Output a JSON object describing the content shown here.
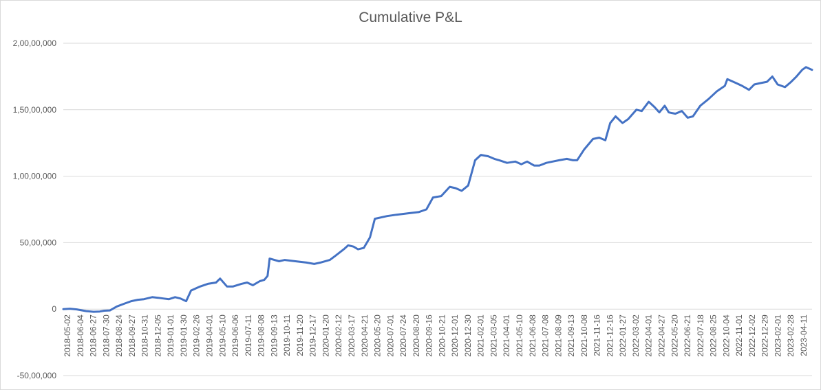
{
  "chart_data": {
    "type": "line",
    "title": "Cumulative P&L",
    "xlabel": "",
    "ylabel": "",
    "ylim": [
      -5000000,
      20000000
    ],
    "y_ticks": [
      {
        "value": 20000000,
        "label": "2,00,00,000"
      },
      {
        "value": 15000000,
        "label": "1,50,00,000"
      },
      {
        "value": 10000000,
        "label": "1,00,00,000"
      },
      {
        "value": 5000000,
        "label": "50,00,000"
      },
      {
        "value": 0,
        "label": "0"
      },
      {
        "value": -5000000,
        "label": "-50,00,000"
      }
    ],
    "grid": true,
    "legend": "none",
    "line_color": "#4472c4",
    "x_tick_labels": [
      "2018-05-02",
      "2018-06-04",
      "2018-06-27",
      "2018-07-30",
      "2018-08-24",
      "2018-09-27",
      "2018-10-31",
      "2018-12-05",
      "2019-01-01",
      "2019-01-30",
      "2019-02-26",
      "2019-04-01",
      "2019-05-10",
      "2019-06-06",
      "2019-07-11",
      "2019-08-08",
      "2019-09-13",
      "2019-10-11",
      "2019-11-20",
      "2019-12-17",
      "2020-01-20",
      "2020-02-12",
      "2020-03-17",
      "2020-04-21",
      "2020-05-20",
      "2020-07-01",
      "2020-07-24",
      "2020-08-20",
      "2020-09-16",
      "2020-10-21",
      "2020-12-01",
      "2020-12-30",
      "2021-02-01",
      "2021-03-05",
      "2021-04-01",
      "2021-05-10",
      "2021-06-08",
      "2021-07-08",
      "2021-08-09",
      "2021-09-13",
      "2021-10-08",
      "2021-11-16",
      "2021-12-16",
      "2022-01-27",
      "2022-03-02",
      "2022-04-01",
      "2022-04-27",
      "2022-05-20",
      "2022-06-21",
      "2022-07-18",
      "2022-08-25",
      "2022-10-04",
      "2022-11-01",
      "2022-12-02",
      "2022-12-29",
      "2023-02-01",
      "2023-02-28",
      "2023-04-11"
    ],
    "x_range": [
      "2018-05-02",
      "2023-05-05"
    ],
    "series": [
      {
        "points": [
          [
            "2018-05-02",
            0
          ],
          [
            "2018-05-18",
            30000
          ],
          [
            "2018-06-04",
            -20000
          ],
          [
            "2018-06-27",
            -150000
          ],
          [
            "2018-07-15",
            -200000
          ],
          [
            "2018-07-30",
            -180000
          ],
          [
            "2018-08-10",
            -120000
          ],
          [
            "2018-08-24",
            -100000
          ],
          [
            "2018-09-10",
            200000
          ],
          [
            "2018-09-27",
            400000
          ],
          [
            "2018-10-15",
            600000
          ],
          [
            "2018-10-31",
            700000
          ],
          [
            "2018-11-15",
            750000
          ],
          [
            "2018-12-05",
            900000
          ],
          [
            "2018-12-20",
            850000
          ],
          [
            "2019-01-01",
            800000
          ],
          [
            "2019-01-15",
            750000
          ],
          [
            "2019-01-30",
            900000
          ],
          [
            "2019-02-12",
            800000
          ],
          [
            "2019-02-26",
            600000
          ],
          [
            "2019-03-10",
            1400000
          ],
          [
            "2019-04-01",
            1700000
          ],
          [
            "2019-04-20",
            1900000
          ],
          [
            "2019-05-10",
            2000000
          ],
          [
            "2019-05-20",
            2300000
          ],
          [
            "2019-06-06",
            1700000
          ],
          [
            "2019-06-20",
            1700000
          ],
          [
            "2019-07-11",
            1900000
          ],
          [
            "2019-07-25",
            2000000
          ],
          [
            "2019-08-08",
            1800000
          ],
          [
            "2019-08-25",
            2100000
          ],
          [
            "2019-09-05",
            2200000
          ],
          [
            "2019-09-13",
            2500000
          ],
          [
            "2019-09-18",
            3800000
          ],
          [
            "2019-10-11",
            3600000
          ],
          [
            "2019-10-25",
            3700000
          ],
          [
            "2019-11-20",
            3600000
          ],
          [
            "2019-12-17",
            3500000
          ],
          [
            "2020-01-05",
            3400000
          ],
          [
            "2020-01-20",
            3500000
          ],
          [
            "2020-02-12",
            3700000
          ],
          [
            "2020-02-25",
            4000000
          ],
          [
            "2020-03-17",
            4500000
          ],
          [
            "2020-03-28",
            4800000
          ],
          [
            "2020-04-10",
            4700000
          ],
          [
            "2020-04-21",
            4500000
          ],
          [
            "2020-05-05",
            4600000
          ],
          [
            "2020-05-20",
            5400000
          ],
          [
            "2020-06-01",
            6800000
          ],
          [
            "2020-07-01",
            7000000
          ],
          [
            "2020-07-24",
            7100000
          ],
          [
            "2020-08-20",
            7200000
          ],
          [
            "2020-09-16",
            7300000
          ],
          [
            "2020-10-05",
            7500000
          ],
          [
            "2020-10-21",
            8400000
          ],
          [
            "2020-11-10",
            8500000
          ],
          [
            "2020-12-01",
            9200000
          ],
          [
            "2020-12-15",
            9100000
          ],
          [
            "2020-12-30",
            8900000
          ],
          [
            "2021-01-15",
            9300000
          ],
          [
            "2021-02-01",
            11200000
          ],
          [
            "2021-02-15",
            11600000
          ],
          [
            "2021-03-05",
            11500000
          ],
          [
            "2021-03-20",
            11300000
          ],
          [
            "2021-04-01",
            11200000
          ],
          [
            "2021-04-20",
            11000000
          ],
          [
            "2021-05-10",
            11100000
          ],
          [
            "2021-05-25",
            10900000
          ],
          [
            "2021-06-08",
            11100000
          ],
          [
            "2021-06-25",
            10800000
          ],
          [
            "2021-07-08",
            10800000
          ],
          [
            "2021-07-25",
            11000000
          ],
          [
            "2021-08-09",
            11100000
          ],
          [
            "2021-08-25",
            11200000
          ],
          [
            "2021-09-13",
            11300000
          ],
          [
            "2021-09-28",
            11200000
          ],
          [
            "2021-10-08",
            11200000
          ],
          [
            "2021-10-25",
            12000000
          ],
          [
            "2021-11-16",
            12800000
          ],
          [
            "2021-12-01",
            12900000
          ],
          [
            "2021-12-16",
            12700000
          ],
          [
            "2021-12-28",
            14000000
          ],
          [
            "2022-01-10",
            14500000
          ],
          [
            "2022-01-27",
            14000000
          ],
          [
            "2022-02-10",
            14300000
          ],
          [
            "2022-03-02",
            15000000
          ],
          [
            "2022-03-15",
            14900000
          ],
          [
            "2022-04-01",
            15600000
          ],
          [
            "2022-04-15",
            15200000
          ],
          [
            "2022-04-27",
            14800000
          ],
          [
            "2022-05-10",
            15300000
          ],
          [
            "2022-05-20",
            14800000
          ],
          [
            "2022-06-05",
            14700000
          ],
          [
            "2022-06-21",
            14900000
          ],
          [
            "2022-07-05",
            14400000
          ],
          [
            "2022-07-18",
            14500000
          ],
          [
            "2022-08-05",
            15300000
          ],
          [
            "2022-08-25",
            15800000
          ],
          [
            "2022-09-15",
            16400000
          ],
          [
            "2022-10-04",
            16800000
          ],
          [
            "2022-10-10",
            17300000
          ],
          [
            "2022-11-01",
            17000000
          ],
          [
            "2022-11-15",
            16800000
          ],
          [
            "2022-12-02",
            16500000
          ],
          [
            "2022-12-15",
            16900000
          ],
          [
            "2022-12-29",
            17000000
          ],
          [
            "2023-01-15",
            17100000
          ],
          [
            "2023-01-28",
            17500000
          ],
          [
            "2023-02-10",
            16900000
          ],
          [
            "2023-02-28",
            16700000
          ],
          [
            "2023-03-15",
            17100000
          ],
          [
            "2023-03-28",
            17500000
          ],
          [
            "2023-04-11",
            18000000
          ],
          [
            "2023-04-20",
            18200000
          ],
          [
            "2023-05-05",
            18000000
          ]
        ]
      }
    ]
  }
}
